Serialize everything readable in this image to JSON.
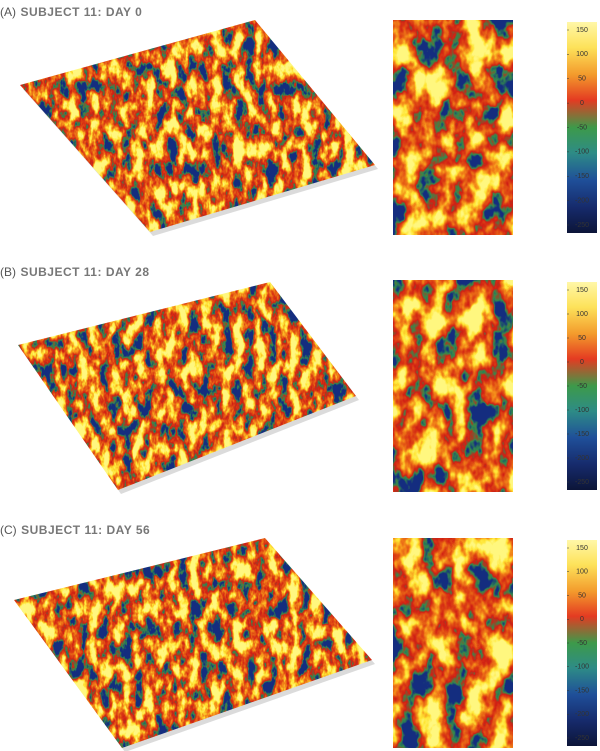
{
  "panels": [
    {
      "label": "(A)",
      "title": "SUBJECT 11: DAY 0",
      "colorbar": {
        "ticks": [
          150,
          100,
          50,
          0,
          -50,
          -100,
          -150,
          -200,
          -250
        ]
      }
    },
    {
      "label": "(B)",
      "title": "SUBJECT 11: DAY 28",
      "colorbar": {
        "ticks": [
          150,
          100,
          50,
          0,
          -50,
          -100,
          -150,
          -200,
          -250
        ]
      }
    },
    {
      "label": "(C)",
      "title": "SUBJECT 11: DAY 56",
      "colorbar": {
        "ticks": [
          150,
          100,
          50,
          0,
          -50,
          -100,
          -150,
          -200,
          -250
        ]
      }
    }
  ]
}
